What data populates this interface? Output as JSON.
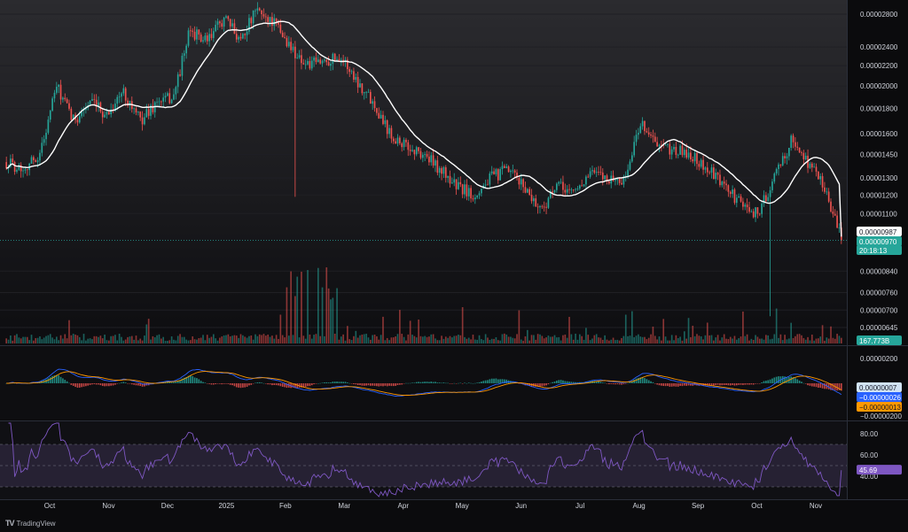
{
  "brand": {
    "name": "TradingView",
    "logo_text": "TV"
  },
  "price_badges": {
    "ma_value": "0.00000987",
    "last_price": "0.00000970",
    "countdown": "20:18:13",
    "volume": "167.773B",
    "macd": "0.00000007",
    "macd_signal": "−0.00000026",
    "macd_hist": "−0.00000013",
    "rsi": "45.69"
  },
  "colors": {
    "up": "#26a69a",
    "down": "#ef5350",
    "ma": "#ffffff",
    "macd_line": "#2962ff",
    "signal_line": "#ff9800",
    "rsi_line": "#7e57c2",
    "rsi_band": "#2a2438"
  },
  "chart_data": [
    {
      "type": "candlestick",
      "panel": "price",
      "x": [
        "Oct",
        "Nov",
        "Dec",
        "2025",
        "Feb",
        "Mar",
        "Apr",
        "May",
        "Jun",
        "Jul",
        "Aug",
        "Sep",
        "Oct",
        "Nov"
      ],
      "y_ticks": [
        "0.00002800",
        "0.00002400",
        "0.00002200",
        "0.00002000",
        "0.00001800",
        "0.00001600",
        "0.00001450",
        "0.00001300",
        "0.00001200",
        "0.00001100",
        "0.00000840",
        "0.00000760",
        "0.00000700",
        "0.00000645"
      ],
      "y_scale": "log",
      "close_path": [
        [
          0,
          1.4e-05
        ],
        [
          0.02,
          1.36e-05
        ],
        [
          0.04,
          1.45e-05
        ],
        [
          0.06,
          2e-05
        ],
        [
          0.08,
          1.7e-05
        ],
        [
          0.1,
          1.85e-05
        ],
        [
          0.12,
          1.75e-05
        ],
        [
          0.14,
          1.95e-05
        ],
        [
          0.16,
          1.7e-05
        ],
        [
          0.18,
          1.85e-05
        ],
        [
          0.2,
          1.9e-05
        ],
        [
          0.22,
          2.6e-05
        ],
        [
          0.24,
          2.45e-05
        ],
        [
          0.26,
          2.75e-05
        ],
        [
          0.28,
          2.5e-05
        ],
        [
          0.3,
          2.85e-05
        ],
        [
          0.32,
          2.7e-05
        ],
        [
          0.34,
          2.4e-05
        ],
        [
          0.36,
          2.2e-05
        ],
        [
          0.38,
          2.25e-05
        ],
        [
          0.4,
          2.3e-05
        ],
        [
          0.42,
          2.05e-05
        ],
        [
          0.44,
          1.85e-05
        ],
        [
          0.46,
          1.6e-05
        ],
        [
          0.48,
          1.5e-05
        ],
        [
          0.5,
          1.45e-05
        ],
        [
          0.52,
          1.35e-05
        ],
        [
          0.54,
          1.25e-05
        ],
        [
          0.56,
          1.2e-05
        ],
        [
          0.58,
          1.3e-05
        ],
        [
          0.6,
          1.35e-05
        ],
        [
          0.62,
          1.25e-05
        ],
        [
          0.64,
          1.12e-05
        ],
        [
          0.66,
          1.25e-05
        ],
        [
          0.68,
          1.22e-05
        ],
        [
          0.7,
          1.33e-05
        ],
        [
          0.72,
          1.3e-05
        ],
        [
          0.74,
          1.28e-05
        ],
        [
          0.76,
          1.7e-05
        ],
        [
          0.78,
          1.5e-05
        ],
        [
          0.8,
          1.48e-05
        ],
        [
          0.82,
          1.45e-05
        ],
        [
          0.84,
          1.35e-05
        ],
        [
          0.86,
          1.25e-05
        ],
        [
          0.88,
          1.15e-05
        ],
        [
          0.9,
          1.1e-05
        ],
        [
          0.92,
          1.3e-05
        ],
        [
          0.94,
          1.55e-05
        ],
        [
          0.96,
          1.4e-05
        ],
        [
          0.98,
          1.25e-05
        ],
        [
          1.0,
          9.7e-06
        ]
      ],
      "last_price": 9.7e-06,
      "ma_last": 9.87e-06
    },
    {
      "type": "bar",
      "panel": "volume",
      "last_value": "167.773B"
    },
    {
      "type": "line",
      "panel": "macd",
      "y_ticks": [
        "0.00000200",
        "−0.00000200"
      ],
      "series": [
        {
          "name": "MACD",
          "last": "0.00000007"
        },
        {
          "name": "Signal",
          "last": "−0.00000026"
        },
        {
          "name": "Histogram",
          "last": "−0.00000013"
        }
      ]
    },
    {
      "type": "line",
      "panel": "rsi",
      "y_ticks": [
        "80.00",
        "60.00",
        "40.00"
      ],
      "ylim": [
        20,
        90
      ],
      "band": [
        30,
        70
      ],
      "last": "45.69"
    }
  ]
}
